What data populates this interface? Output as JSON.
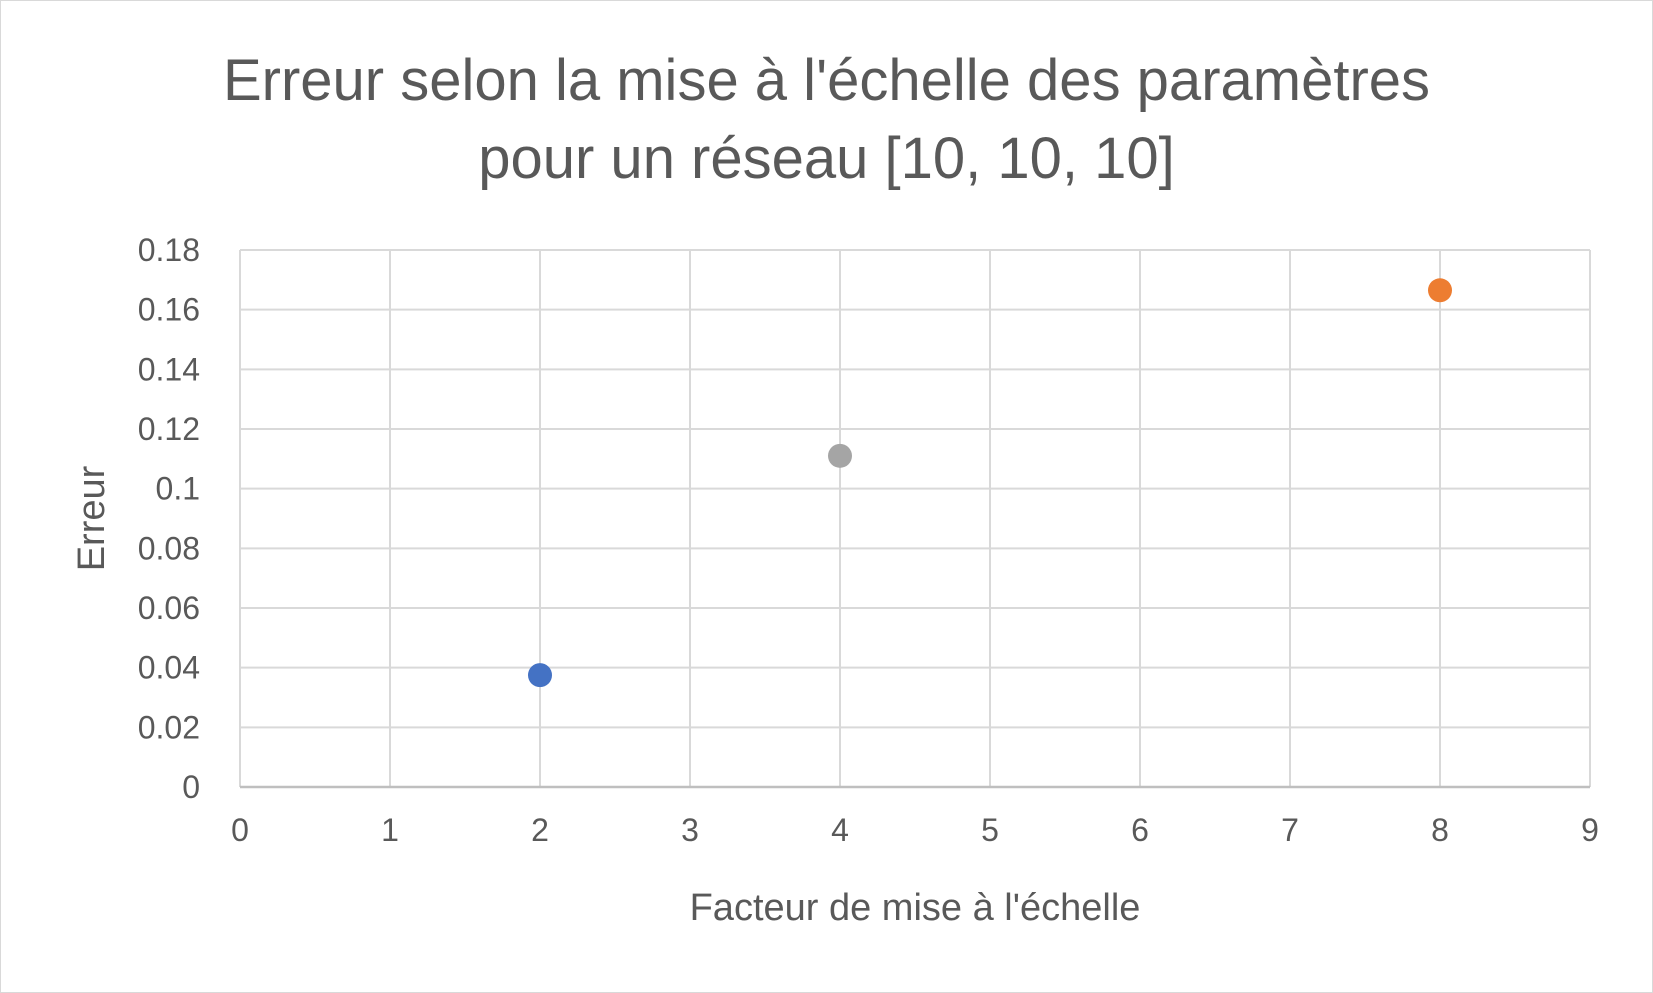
{
  "chart_data": {
    "type": "scatter",
    "title_lines": [
      "Erreur selon la mise à l'échelle des paramètres",
      "pour un réseau [10, 10, 10]"
    ],
    "xlabel": "Facteur de mise à l'échelle",
    "ylabel": "Erreur",
    "xlim": [
      0,
      9
    ],
    "ylim": [
      0,
      0.18
    ],
    "x_ticks": [
      "0",
      "1",
      "2",
      "3",
      "4",
      "5",
      "6",
      "7",
      "8",
      "9"
    ],
    "y_ticks": [
      "0",
      "0.02",
      "0.04",
      "0.06",
      "0.08",
      "0.1",
      "0.12",
      "0.14",
      "0.16",
      "0.18"
    ],
    "grid": true,
    "legend": "none",
    "points": [
      {
        "x": 2,
        "y": 0.0375,
        "color": "#4472c4"
      },
      {
        "x": 4,
        "y": 0.111,
        "color": "#a5a5a5"
      },
      {
        "x": 8,
        "y": 0.1665,
        "color": "#ed7d31"
      }
    ]
  }
}
